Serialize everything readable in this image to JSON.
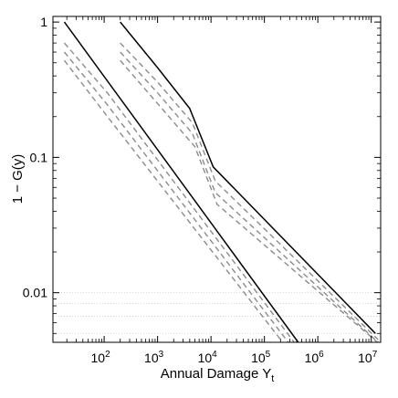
{
  "chart_data": {
    "type": "line",
    "title": "",
    "xlabel": "Annual Damage",
    "xlabel_symbol": "Y",
    "xlabel_subscript": "t",
    "ylabel": "1 − G(y)",
    "x_scale": "log",
    "y_scale": "log",
    "xlim": [
      11,
      15000000
    ],
    "ylim": [
      0.0043,
      1.1
    ],
    "grid": false,
    "x_ticks": [
      {
        "value": 100,
        "base": "10",
        "exp": "2"
      },
      {
        "value": 1000,
        "base": "10",
        "exp": "3"
      },
      {
        "value": 10000,
        "base": "10",
        "exp": "4"
      },
      {
        "value": 100000,
        "base": "10",
        "exp": "5"
      },
      {
        "value": 1000000,
        "base": "10",
        "exp": "6"
      },
      {
        "value": 10000000,
        "base": "10",
        "exp": "7"
      }
    ],
    "y_ticks": [
      {
        "value": 1,
        "label": "1"
      },
      {
        "value": 0.1,
        "label": "0.1"
      },
      {
        "value": 0.01,
        "label": "0.01"
      }
    ],
    "reference_lines": [
      0.01,
      0.0083,
      0.0067,
      0.005
    ],
    "colors": {
      "estimate": "#000000",
      "band": "#8c8c8c",
      "reference": "#cccccc"
    },
    "series": [
      {
        "style": "solid",
        "x": [
          18,
          430000
        ],
        "y": [
          1.0,
          0.0043
        ]
      },
      {
        "style": "dashed",
        "x": [
          18,
          115,
          360000
        ],
        "y": [
          0.7,
          0.3,
          0.0043
        ]
      },
      {
        "style": "dashed",
        "x": [
          18,
          110,
          280000
        ],
        "y": [
          0.6,
          0.25,
          0.0043
        ]
      },
      {
        "style": "dashed",
        "x": [
          18,
          105,
          220000
        ],
        "y": [
          0.52,
          0.21,
          0.0043
        ]
      },
      {
        "style": "solid",
        "x": [
          200,
          1000,
          4000,
          11000,
          12000000
        ],
        "y": [
          1.0,
          0.46,
          0.23,
          0.085,
          0.005
        ]
      },
      {
        "style": "dashed",
        "x": [
          200,
          1000,
          4500,
          12000,
          13500000
        ],
        "y": [
          0.7,
          0.36,
          0.18,
          0.067,
          0.0045
        ]
      },
      {
        "style": "dashed",
        "x": [
          200,
          1000,
          4500,
          12000,
          13500000
        ],
        "y": [
          0.6,
          0.3,
          0.15,
          0.055,
          0.0043
        ]
      },
      {
        "style": "dashed",
        "x": [
          200,
          1000,
          5000,
          13000,
          13000000
        ],
        "y": [
          0.52,
          0.25,
          0.12,
          0.045,
          0.0043
        ]
      }
    ]
  }
}
